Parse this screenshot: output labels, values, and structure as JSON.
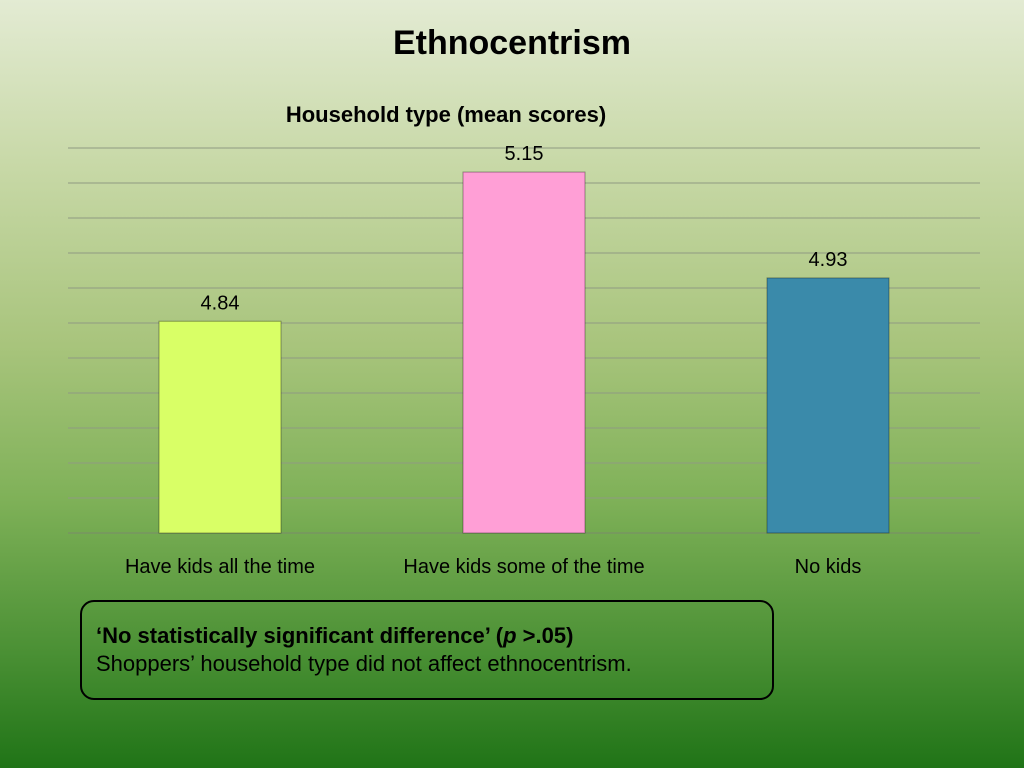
{
  "slide": {
    "title": "Ethnocentrism"
  },
  "chart_data": {
    "type": "bar",
    "title": "Household type (mean scores)",
    "categories": [
      "Have kids all the time",
      "Have kids some of the time",
      "No kids"
    ],
    "values": [
      4.84,
      5.15,
      4.93
    ],
    "data_labels": [
      "4.84",
      "5.15",
      "4.93"
    ],
    "colors": [
      "#d9ff66",
      "#ff9fd6",
      "#3a8aaa"
    ],
    "ylim": [
      4.4,
      5.2
    ],
    "grid": true,
    "legend": "none"
  },
  "note": {
    "line1_pre": "‘No statistically significant difference’ (",
    "line1_p": "p",
    "line1_post": " >.05)",
    "line2": "Shoppers’ household type did not affect ethnocentrism."
  }
}
